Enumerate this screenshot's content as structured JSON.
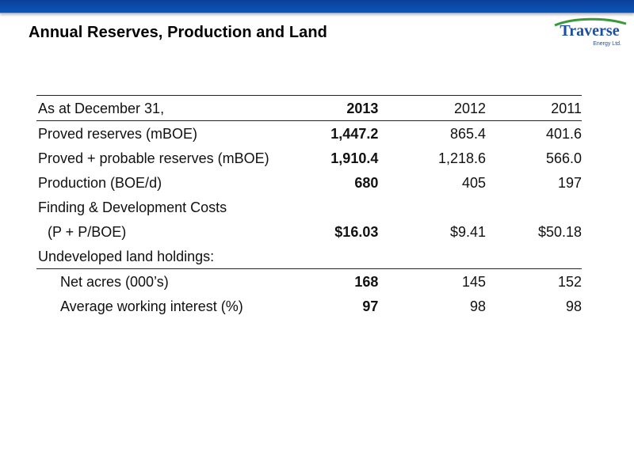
{
  "page": {
    "title": "Annual Reserves, Production and Land"
  },
  "logo": {
    "name": "Traverse",
    "tagline": "Energy Ltd.",
    "colors": {
      "text": "#1c4fa0",
      "swoosh": "#3a9a3a"
    }
  },
  "colors": {
    "top_bar": "#0a4aa8"
  },
  "table": {
    "header": {
      "label": "As at December 31,",
      "y2013": "2013",
      "y2012": "2012",
      "y2011": "2011"
    },
    "rows": [
      {
        "label": "Proved reserves (mBOE)",
        "y2013": "1,447.2",
        "y2012": "865.4",
        "y2011": "401.6"
      },
      {
        "label": "Proved + probable reserves (mBOE)",
        "y2013": "1,910.4",
        "y2012": "1,218.6",
        "y2011": "566.0"
      },
      {
        "label": "Production (BOE/d)",
        "y2013": "680",
        "y2012": "405",
        "y2011": "197"
      },
      {
        "label": "Finding & Development Costs",
        "y2013": "",
        "y2012": "",
        "y2011": ""
      },
      {
        "label": "(P + P/BOE)",
        "y2013": "$16.03",
        "y2012": "$9.41",
        "y2011": "$50.18"
      },
      {
        "label": "Undeveloped land holdings:",
        "y2013": "",
        "y2012": "",
        "y2011": ""
      },
      {
        "label": "Net acres (000’s)",
        "y2013": "168",
        "y2012": "145",
        "y2011": "152"
      },
      {
        "label": "Average working interest (%)",
        "y2013": "97",
        "y2012": "98",
        "y2011": "98"
      }
    ]
  }
}
